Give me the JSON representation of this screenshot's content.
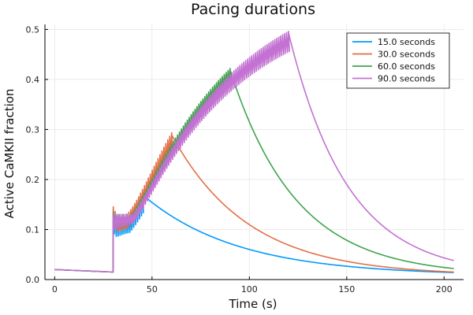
{
  "chart_data": {
    "type": "line",
    "title": "Pacing durations",
    "xlabel": "Time (s)",
    "ylabel": "Active CaMKII fraction",
    "xlim": [
      -5,
      210
    ],
    "ylim": [
      0,
      0.51
    ],
    "xticks": [
      0,
      50,
      100,
      150,
      200
    ],
    "yticks": [
      0.0,
      0.1,
      0.2,
      0.3,
      0.4,
      0.5
    ],
    "xtick_labels": [
      "0",
      "50",
      "100",
      "150",
      "200"
    ],
    "ytick_labels": [
      "0.0",
      "0.1",
      "0.2",
      "0.3",
      "0.4",
      "0.5"
    ],
    "grid": true,
    "legend_position": "top-right",
    "series": [
      {
        "name": "15.0 seconds",
        "color": "#009AFA",
        "pacing_start": 30,
        "pacing_end": 45,
        "end_time": 205,
        "baseline_start": 0.02,
        "baseline_at_pacing": 0.015,
        "peak_at_end": 0.17,
        "peak_low_at_end": 0.135,
        "final_value": 0.014
      },
      {
        "name": "30.0 seconds",
        "color": "#E36F47",
        "pacing_start": 30,
        "pacing_end": 60,
        "end_time": 205,
        "baseline_start": 0.02,
        "baseline_at_pacing": 0.015,
        "peak_at_end": 0.29,
        "peak_low_at_end": 0.25,
        "final_value": 0.015
      },
      {
        "name": "60.0 seconds",
        "color": "#3EA44E",
        "pacing_start": 30,
        "pacing_end": 90,
        "end_time": 205,
        "baseline_start": 0.02,
        "baseline_at_pacing": 0.015,
        "peak_at_end": 0.42,
        "peak_low_at_end": 0.395,
        "final_value": 0.022
      },
      {
        "name": "90.0 seconds",
        "color": "#C371D2",
        "pacing_start": 30,
        "pacing_end": 120,
        "end_time": 205,
        "baseline_start": 0.02,
        "baseline_at_pacing": 0.015,
        "peak_at_end": 0.495,
        "peak_low_at_end": 0.455,
        "final_value": 0.038
      }
    ]
  }
}
